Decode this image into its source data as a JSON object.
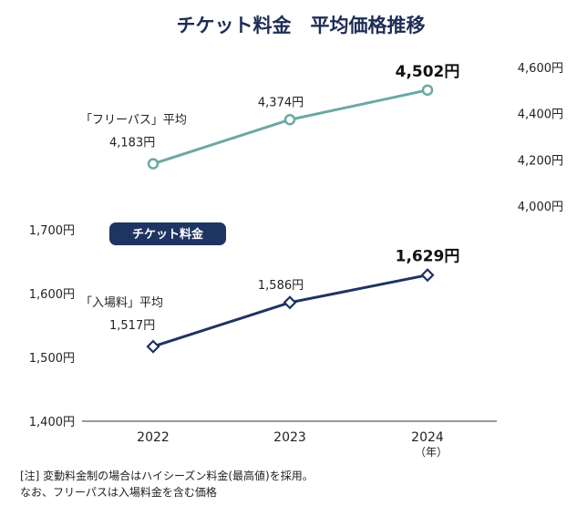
{
  "title": "チケット料金　平均価格推移",
  "badge": "チケット料金",
  "x_unit": "（年）",
  "notes": [
    "[注]  変動料金制の場合はハイシーズン料金(最高値)を採用。",
    "       なお、フリーパスは入場料金を含む価格"
  ],
  "colors": {
    "free_pass": "#6aa9a5",
    "admission": "#1e3461",
    "badge": "#1e3461",
    "axis": "#333333"
  },
  "chart_data": [
    {
      "type": "line",
      "name": "free_pass",
      "series_label": "「フリーパス」平均",
      "categories": [
        "2022",
        "2023",
        "2024"
      ],
      "values": [
        4183,
        4374,
        4502
      ],
      "value_labels": [
        "4,183円",
        "4,374円",
        "4,502円"
      ],
      "y_axis": "right",
      "ylim": [
        4000,
        4600
      ],
      "yticks": [
        4000,
        4200,
        4400,
        4600
      ],
      "ytick_labels": [
        "4,000円",
        "4,200円",
        "4,400円",
        "4,600円"
      ],
      "marker": "circle"
    },
    {
      "type": "line",
      "name": "admission",
      "series_label": "「入場料」平均",
      "categories": [
        "2022",
        "2023",
        "2024"
      ],
      "values": [
        1517,
        1586,
        1629
      ],
      "value_labels": [
        "1,517円",
        "1,586円",
        "1,629円"
      ],
      "y_axis": "left",
      "ylim": [
        1400,
        1700
      ],
      "yticks": [
        1400,
        1500,
        1600,
        1700
      ],
      "ytick_labels": [
        "1,400円",
        "1,500円",
        "1,600円",
        "1,700円"
      ],
      "marker": "diamond"
    }
  ]
}
